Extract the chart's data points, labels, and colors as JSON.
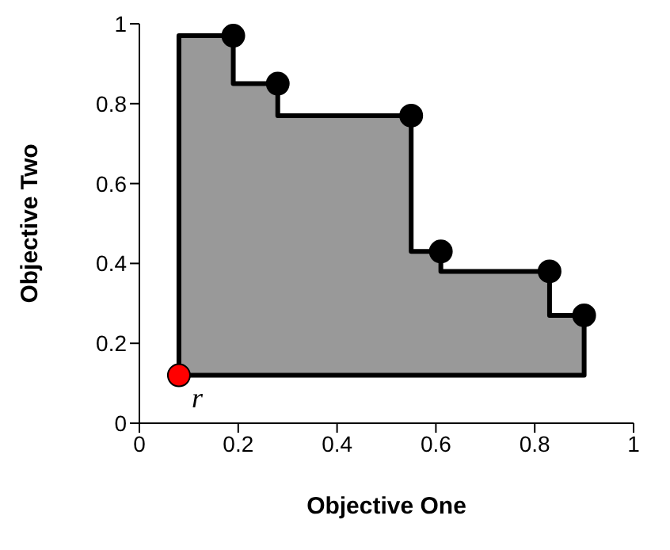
{
  "chart_data": {
    "type": "area",
    "xlabel": "Objective One",
    "ylabel": "Objective Two",
    "xlim": [
      0,
      1
    ],
    "ylim": [
      0,
      1
    ],
    "xticks": [
      0,
      0.2,
      0.4,
      0.6,
      0.8,
      1
    ],
    "yticks": [
      0,
      0.2,
      0.4,
      0.6,
      0.8,
      1
    ],
    "series": [
      {
        "color": "#999999",
        "x": [
          0.08,
          0.08,
          0.19,
          0.19,
          0.28,
          0.28,
          0.55,
          0.55,
          0.61,
          0.61,
          0.83,
          0.83,
          0.9,
          0.9,
          0.08
        ],
        "values": [
          0.12,
          0.97,
          0.97,
          0.85,
          0.85,
          0.77,
          0.77,
          0.43,
          0.43,
          0.38,
          0.38,
          0.27,
          0.27,
          0.12,
          0.12
        ]
      },
      {
        "type": "scatter",
        "marker": "circle",
        "color": "#000000",
        "x": [
          0.19,
          0.28,
          0.55,
          0.61,
          0.83,
          0.9
        ],
        "values": [
          0.97,
          0.85,
          0.77,
          0.43,
          0.38,
          0.27
        ]
      },
      {
        "type": "scatter",
        "marker": "circle",
        "color": "#ff0000",
        "x": [
          0.08
        ],
        "values": [
          0.12
        ]
      }
    ],
    "annotations": [
      {
        "text": "r",
        "x": 0.08,
        "y": 0.12
      }
    ]
  }
}
